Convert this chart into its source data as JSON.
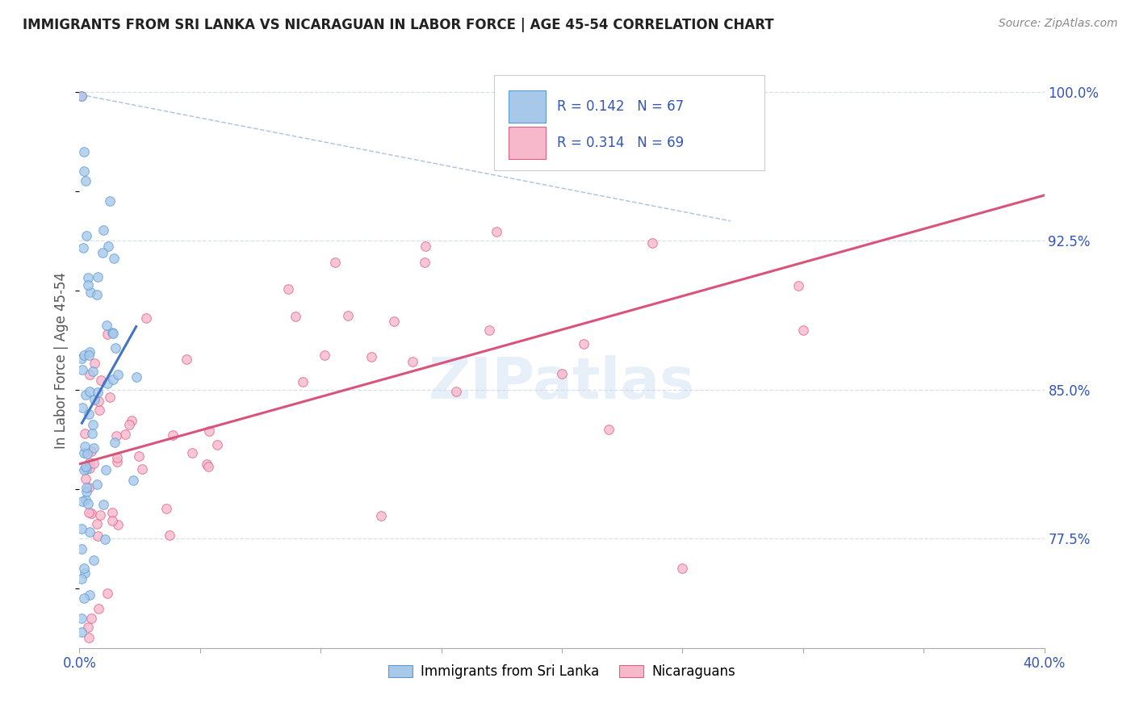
{
  "title": "IMMIGRANTS FROM SRI LANKA VS NICARAGUAN IN LABOR FORCE | AGE 45-54 CORRELATION CHART",
  "source": "Source: ZipAtlas.com",
  "ylabel": "In Labor Force | Age 45-54",
  "x_min": 0.0,
  "x_max": 0.4,
  "y_min": 0.72,
  "y_max": 1.01,
  "y_ticks": [
    0.775,
    0.85,
    0.925,
    1.0
  ],
  "y_tick_labels": [
    "77.5%",
    "85.0%",
    "92.5%",
    "100.0%"
  ],
  "legend_R1": "0.142",
  "legend_N1": "67",
  "legend_R2": "0.314",
  "legend_N2": "69",
  "color_sri_lanka": "#a8c8ea",
  "color_nicaraguan": "#f7b8cc",
  "edge_color_sri_lanka": "#5b9bd5",
  "edge_color_nicaraguan": "#e06080",
  "line_color_sri_lanka": "#4472c4",
  "line_color_nicaraguan": "#d9547a",
  "dashed_line_color": "#9db8d8",
  "grid_color": "#d8dfe8",
  "tick_color": "#3355bb",
  "watermark_color": "#c5d8f0",
  "title_color": "#222222",
  "source_color": "#888888",
  "ylabel_color": "#555555"
}
